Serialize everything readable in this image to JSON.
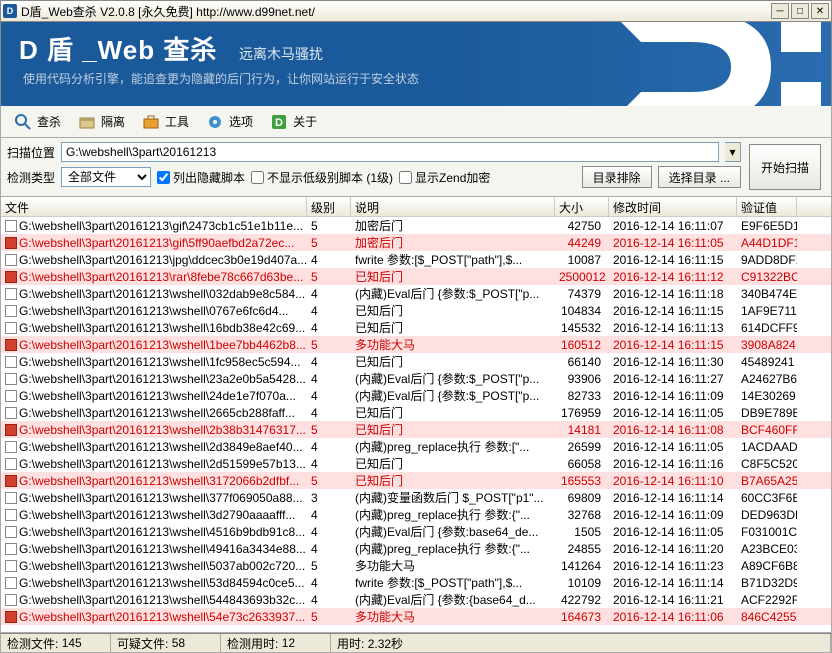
{
  "window": {
    "title": "D盾_Web查杀  V2.0.8  [永久免费]  http://www.d99net.net/"
  },
  "banner": {
    "title": "D 盾 _Web 查杀",
    "subtitle": "远离木马骚扰",
    "desc": "使用代码分析引擎，能追查更为隐藏的后门行为，让你网站运行于安全状态"
  },
  "toolbar": {
    "scan": "查杀",
    "quarantine": "隔离",
    "tools": "工具",
    "options": "选项",
    "about": "关于"
  },
  "controls": {
    "path_label": "扫描位置",
    "path_value": "G:\\webshell\\3part\\20161213",
    "type_label": "检测类型",
    "type_value": "全部文件",
    "chk_hidden": "列出隐藏脚本",
    "chk_lowlevel": "不显示低级别脚本 (1级)",
    "chk_zend": "显示Zend加密",
    "btn_exclude": "目录排除",
    "btn_select": "选择目录 ...",
    "btn_start": "开始扫描"
  },
  "columns": {
    "file": "文件",
    "level": "级别",
    "desc": "说明",
    "size": "大小",
    "mtime": "修改时间",
    "hash": "验证值"
  },
  "rows": [
    {
      "f": "G:\\webshell\\3part\\20161213\\gif\\2473cb1c51e1b11e...",
      "l": "5",
      "d": "加密后门",
      "s": "42750",
      "t": "2016-12-14 16:11:07",
      "h": "E9F6E5D1",
      "red": false
    },
    {
      "f": "G:\\webshell\\3part\\20161213\\gif\\5ff90aefbd2a72ec...",
      "l": "5",
      "d": "加密后门",
      "s": "44249",
      "t": "2016-12-14 16:11:05",
      "h": "A44D1DF1",
      "red": true
    },
    {
      "f": "G:\\webshell\\3part\\20161213\\jpg\\ddcec3b0e19d407a...",
      "l": "4",
      "d": "fwrite 参数:[$_POST[\"path\"],$...",
      "s": "10087",
      "t": "2016-12-14 16:11:15",
      "h": "9ADD8DF1",
      "red": false
    },
    {
      "f": "G:\\webshell\\3part\\20161213\\rar\\8febe78c667d63be...",
      "l": "5",
      "d": "已知后门",
      "s": "2500012",
      "t": "2016-12-14 16:11:12",
      "h": "C91322BC",
      "red": true
    },
    {
      "f": "G:\\webshell\\3part\\20161213\\wshell\\032dab9e8c584...",
      "l": "4",
      "d": "(内藏)Eval后门 {参数:$_POST[\"p...",
      "s": "74379",
      "t": "2016-12-14 16:11:18",
      "h": "340B474E",
      "red": false
    },
    {
      "f": "G:\\webshell\\3part\\20161213\\wshell\\0767e6fc6d4...",
      "l": "4",
      "d": "已知后门",
      "s": "104834",
      "t": "2016-12-14 16:11:15",
      "h": "1AF9E711",
      "red": false
    },
    {
      "f": "G:\\webshell\\3part\\20161213\\wshell\\16bdb38e42c69...",
      "l": "4",
      "d": "已知后门",
      "s": "145532",
      "t": "2016-12-14 16:11:13",
      "h": "614DCFF9",
      "red": false
    },
    {
      "f": "G:\\webshell\\3part\\20161213\\wshell\\1bee7bb4462b8...",
      "l": "5",
      "d": "多功能大马",
      "s": "160512",
      "t": "2016-12-14 16:11:15",
      "h": "3908A824",
      "red": true
    },
    {
      "f": "G:\\webshell\\3part\\20161213\\wshell\\1fc958ec5c594...",
      "l": "4",
      "d": "已知后门",
      "s": "66140",
      "t": "2016-12-14 16:11:30",
      "h": "45489241",
      "red": false
    },
    {
      "f": "G:\\webshell\\3part\\20161213\\wshell\\23a2e0b5a5428...",
      "l": "4",
      "d": "(内藏)Eval后门 {参数:$_POST[\"p...",
      "s": "93906",
      "t": "2016-12-14 16:11:27",
      "h": "A24627B6",
      "red": false
    },
    {
      "f": "G:\\webshell\\3part\\20161213\\wshell\\24de1e7f070a...",
      "l": "4",
      "d": "(内藏)Eval后门 {参数:$_POST[\"p...",
      "s": "82733",
      "t": "2016-12-14 16:11:09",
      "h": "14E30269",
      "red": false
    },
    {
      "f": "G:\\webshell\\3part\\20161213\\wshell\\2665cb288faff...",
      "l": "4",
      "d": "已知后门",
      "s": "176959",
      "t": "2016-12-14 16:11:05",
      "h": "DB9E789B",
      "red": false
    },
    {
      "f": "G:\\webshell\\3part\\20161213\\wshell\\2b38b31476317...",
      "l": "5",
      "d": "已知后门",
      "s": "14181",
      "t": "2016-12-14 16:11:08",
      "h": "BCF460FF",
      "red": true
    },
    {
      "f": "G:\\webshell\\3part\\20161213\\wshell\\2d3849e8aef40...",
      "l": "4",
      "d": "(内藏)preg_replace执行 参数:[\"...",
      "s": "26599",
      "t": "2016-12-14 16:11:05",
      "h": "1ACDAADF",
      "red": false
    },
    {
      "f": "G:\\webshell\\3part\\20161213\\wshell\\2d51599e57b13...",
      "l": "4",
      "d": "已知后门",
      "s": "66058",
      "t": "2016-12-14 16:11:16",
      "h": "C8F5C520",
      "red": false
    },
    {
      "f": "G:\\webshell\\3part\\20161213\\wshell\\3172066b2dfbf...",
      "l": "5",
      "d": "已知后门",
      "s": "165553",
      "t": "2016-12-14 16:11:10",
      "h": "B7A65A25",
      "red": true
    },
    {
      "f": "G:\\webshell\\3part\\20161213\\wshell\\377f069050a88...",
      "l": "3",
      "d": "(内藏)变量函数后门 $_POST[\"p1\"...",
      "s": "69809",
      "t": "2016-12-14 16:11:14",
      "h": "60CC3F6E",
      "red": false
    },
    {
      "f": "G:\\webshell\\3part\\20161213\\wshell\\3d2790aaaafff...",
      "l": "4",
      "d": "(内藏)preg_replace执行 参数:{\"...",
      "s": "32768",
      "t": "2016-12-14 16:11:09",
      "h": "DED963DE",
      "red": false
    },
    {
      "f": "G:\\webshell\\3part\\20161213\\wshell\\4516b9bdb91c8...",
      "l": "4",
      "d": "(内藏)Eval后门 {参数:base64_de...",
      "s": "1505",
      "t": "2016-12-14 16:11:05",
      "h": "F031001C",
      "red": false
    },
    {
      "f": "G:\\webshell\\3part\\20161213\\wshell\\49416a3434e88...",
      "l": "4",
      "d": "(内藏)preg_replace执行 参数:{\"...",
      "s": "24855",
      "t": "2016-12-14 16:11:20",
      "h": "A23BCE03",
      "red": false
    },
    {
      "f": "G:\\webshell\\3part\\20161213\\wshell\\5037ab002c720...",
      "l": "5",
      "d": "多功能大马",
      "s": "141264",
      "t": "2016-12-14 16:11:23",
      "h": "A89CF6B8",
      "red": false
    },
    {
      "f": "G:\\webshell\\3part\\20161213\\wshell\\53d84594c0ce5...",
      "l": "4",
      "d": "fwrite 参数:[$_POST[\"path\"],$...",
      "s": "10109",
      "t": "2016-12-14 16:11:14",
      "h": "B71D32D9",
      "red": false
    },
    {
      "f": "G:\\webshell\\3part\\20161213\\wshell\\544843693b32c...",
      "l": "4",
      "d": "(内藏)Eval后门 {参数:{base64_d...",
      "s": "422792",
      "t": "2016-12-14 16:11:21",
      "h": "ACF2292F",
      "red": false
    },
    {
      "f": "G:\\webshell\\3part\\20161213\\wshell\\54e73c2633937...",
      "l": "5",
      "d": "多功能大马",
      "s": "164673",
      "t": "2016-12-14 16:11:06",
      "h": "846C4255",
      "red": true
    }
  ],
  "status": {
    "detected_lbl": "检测文件:",
    "detected_val": "145",
    "suspect_lbl": "可疑文件:",
    "suspect_val": "58",
    "time_lbl": "检测用时:",
    "time_val": "12",
    "elapsed_lbl": "用时:",
    "elapsed_val": "2.32秒"
  }
}
